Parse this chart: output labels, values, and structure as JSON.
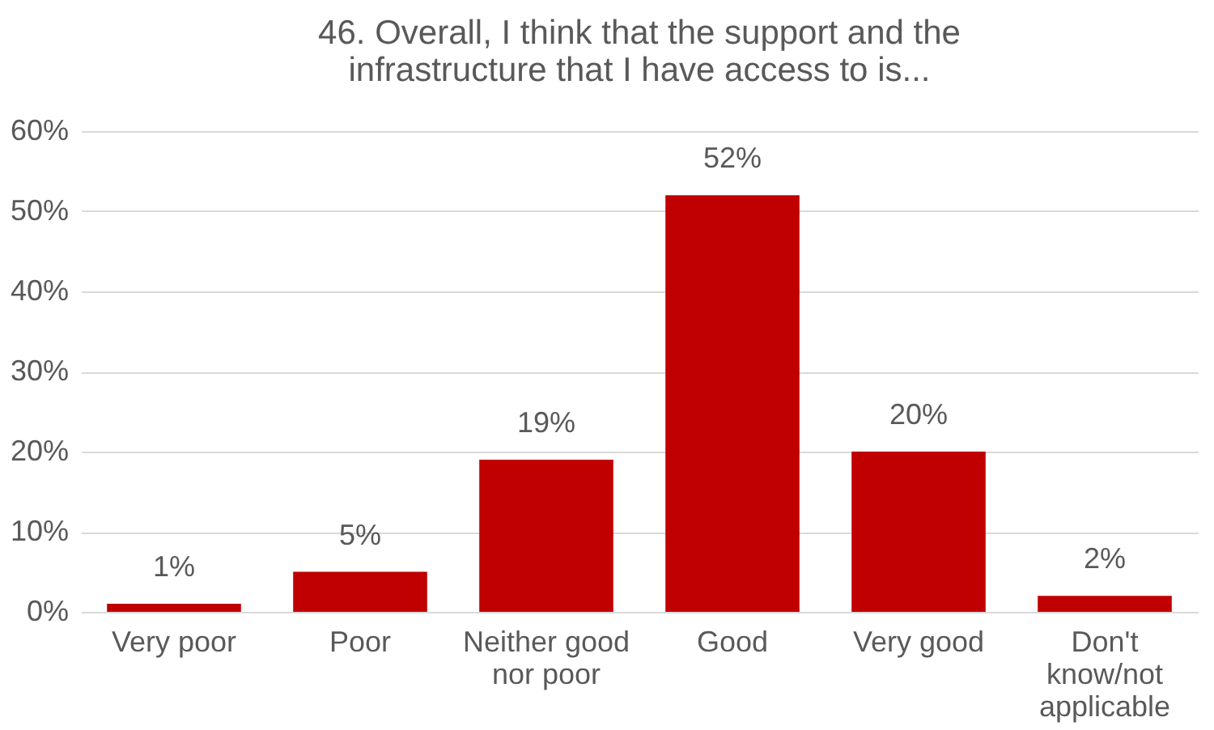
{
  "chart_data": {
    "type": "bar",
    "title": "46. Overall, I think that the support and the infrastructure that I have access to is...",
    "categories": [
      "Very poor",
      "Poor",
      "Neither good nor poor",
      "Good",
      "Very good",
      "Don't know/not applicable"
    ],
    "values": [
      1,
      5,
      19,
      52,
      20,
      2
    ],
    "value_labels": [
      "1%",
      "5%",
      "19%",
      "52%",
      "20%",
      "2%"
    ],
    "color": "#c00000",
    "ylim": [
      0,
      60
    ],
    "yticks": [
      {
        "value": 0,
        "label": "0%"
      },
      {
        "value": 10,
        "label": "10%"
      },
      {
        "value": 20,
        "label": "20%"
      },
      {
        "value": 30,
        "label": "30%"
      },
      {
        "value": 40,
        "label": "40%"
      },
      {
        "value": 50,
        "label": "50%"
      },
      {
        "value": 60,
        "label": "60%"
      }
    ],
    "grid": "y"
  }
}
